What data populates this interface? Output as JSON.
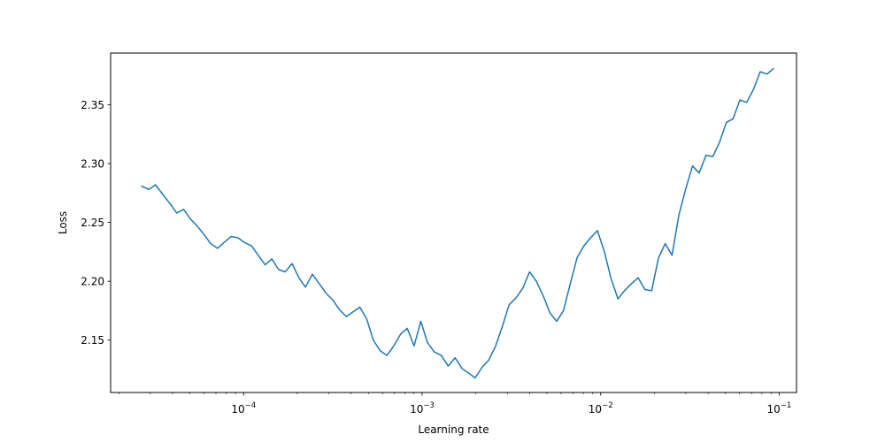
{
  "chart_data": {
    "type": "line",
    "xlabel": "Learning rate",
    "ylabel": "Loss",
    "x_scale": "log",
    "xlim": [
      1.8e-05,
      0.125
    ],
    "ylim": [
      2.1055,
      2.3939
    ],
    "x_ticks": [
      {
        "value": 0.0001,
        "base": "10",
        "exp": "−4"
      },
      {
        "value": 0.001,
        "base": "10",
        "exp": "−3"
      },
      {
        "value": 0.01,
        "base": "10",
        "exp": "−2"
      },
      {
        "value": 0.1,
        "base": "10",
        "exp": "−1"
      }
    ],
    "y_ticks": [
      {
        "value": 2.15,
        "label": "2.15"
      },
      {
        "value": 2.2,
        "label": "2.20"
      },
      {
        "value": 2.25,
        "label": "2.25"
      },
      {
        "value": 2.3,
        "label": "2.30"
      },
      {
        "value": 2.35,
        "label": "2.35"
      }
    ],
    "grid": false,
    "legend": false,
    "line_color": "#1f77b4",
    "series": [
      {
        "x": [
          2.67e-05,
          2.95e-05,
          3.21e-05,
          3.52e-05,
          3.87e-05,
          4.22e-05,
          4.62e-05,
          5.03e-05,
          5.49e-05,
          5.99e-05,
          6.54e-05,
          7.14e-05,
          7.79e-05,
          8.5e-05,
          9.28e-05,
          0.000101,
          0.000111,
          0.000121,
          0.000132,
          0.000144,
          0.000157,
          0.000171,
          0.000187,
          0.000204,
          0.000222,
          0.000243,
          0.000265,
          0.000289,
          0.000316,
          0.000344,
          0.000376,
          0.00041,
          0.000448,
          0.000489,
          0.000533,
          0.000582,
          0.000635,
          0.000693,
          0.000757,
          0.000826,
          0.000901,
          0.000984,
          0.00107,
          0.00117,
          0.00128,
          0.0014,
          0.00153,
          0.00167,
          0.00182,
          0.00198,
          0.00217,
          0.00236,
          0.00258,
          0.00282,
          0.00307,
          0.00336,
          0.00366,
          0.004,
          0.00436,
          0.00476,
          0.0052,
          0.00567,
          0.00619,
          0.00676,
          0.00738,
          0.00805,
          0.00879,
          0.00959,
          0.0105,
          0.0114,
          0.0125,
          0.0136,
          0.0149,
          0.0162,
          0.0177,
          0.0193,
          0.0211,
          0.023,
          0.0251,
          0.0274,
          0.0299,
          0.0327,
          0.0356,
          0.0389,
          0.0425,
          0.0463,
          0.0506,
          0.0552,
          0.0602,
          0.0657,
          0.0718,
          0.0783,
          0.0855,
          0.0933
        ],
        "y": [
          2.281,
          2.278,
          2.282,
          2.274,
          2.266,
          2.258,
          2.261,
          2.253,
          2.247,
          2.24,
          2.232,
          2.228,
          2.233,
          2.238,
          2.237,
          2.233,
          2.23,
          2.222,
          2.214,
          2.219,
          2.21,
          2.208,
          2.215,
          2.203,
          2.195,
          2.206,
          2.198,
          2.19,
          2.184,
          2.176,
          2.17,
          2.174,
          2.178,
          2.168,
          2.15,
          2.141,
          2.137,
          2.145,
          2.155,
          2.16,
          2.145,
          2.166,
          2.148,
          2.14,
          2.137,
          2.128,
          2.135,
          2.126,
          2.122,
          2.118,
          2.127,
          2.133,
          2.145,
          2.162,
          2.18,
          2.186,
          2.194,
          2.208,
          2.2,
          2.188,
          2.173,
          2.166,
          2.175,
          2.198,
          2.22,
          2.23,
          2.237,
          2.243,
          2.225,
          2.203,
          2.185,
          2.192,
          2.198,
          2.203,
          2.193,
          2.192,
          2.22,
          2.232,
          2.222,
          2.256,
          2.278,
          2.298,
          2.292,
          2.307,
          2.306,
          2.318,
          2.335,
          2.338,
          2.354,
          2.352,
          2.363,
          2.378,
          2.376,
          2.381
        ]
      }
    ]
  }
}
